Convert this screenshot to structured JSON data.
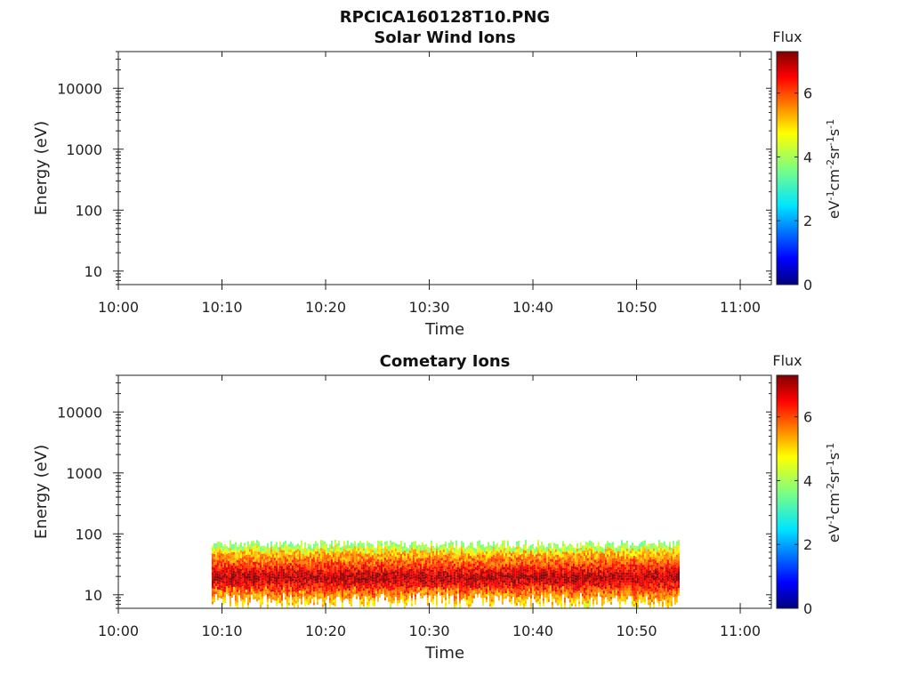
{
  "figure": {
    "title": "RPCICA160128T10.PNG"
  },
  "chart_data": [
    {
      "type": "heatmap",
      "title": "Solar Wind Ions",
      "xlabel": "Time",
      "ylabel": "Energy (eV)",
      "x_ticks": [
        "10:00",
        "10:10",
        "10:20",
        "10:30",
        "10:40",
        "10:50",
        "11:00"
      ],
      "xlim": [
        "10:00",
        "11:03"
      ],
      "y_scale": "log",
      "y_ticks": [
        10,
        100,
        1000,
        10000
      ],
      "ylim": [
        6,
        40000
      ],
      "colorbar": {
        "label": "Flux",
        "units": "eV-1cm-2sr-1s-1",
        "ticks": [
          0,
          2,
          4,
          6
        ],
        "range": [
          0,
          7.3
        ]
      },
      "data": []
    },
    {
      "type": "heatmap",
      "title": "Cometary Ions",
      "xlabel": "Time",
      "ylabel": "Energy (eV)",
      "x_ticks": [
        "10:00",
        "10:10",
        "10:20",
        "10:30",
        "10:40",
        "10:50",
        "11:00"
      ],
      "xlim": [
        "10:00",
        "11:03"
      ],
      "y_scale": "log",
      "y_ticks": [
        10,
        100,
        1000,
        10000
      ],
      "ylim": [
        6,
        40000
      ],
      "colorbar": {
        "label": "Flux",
        "units": "eV-1cm-2sr-1s-1",
        "ticks": [
          0,
          2,
          4,
          6
        ],
        "range": [
          0,
          7.3
        ]
      },
      "data": {
        "time_range": [
          "10:09",
          "10:54"
        ],
        "energy_range_eV": [
          6,
          80
        ],
        "peak_energy_eV": 20,
        "peak_flux": 7,
        "edge_flux": 3
      }
    }
  ]
}
